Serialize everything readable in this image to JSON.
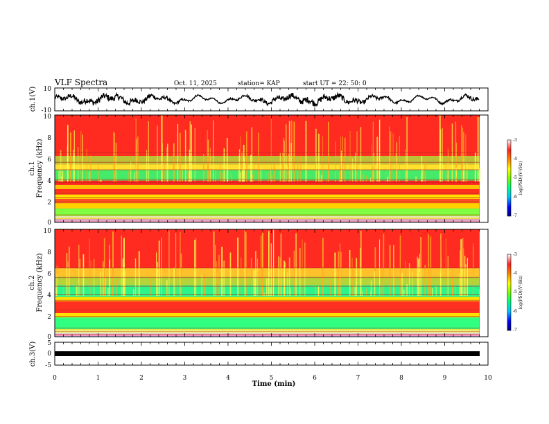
{
  "header": {
    "title": "VLF Spectra",
    "date": "Oct. 11, 2025",
    "station": "station= KAP",
    "start_ut": "start  UT  =   22: 50: 0"
  },
  "colors": {
    "low": "#000080",
    "mid_low": "#00ff60",
    "mid": "#ffff00",
    "high": "#ff2020",
    "top": "#ffffff"
  },
  "chart_data": [
    {
      "type": "line",
      "name": "ch1-waveform",
      "ylabel": "ch.1(V)",
      "ylim": [
        -10,
        10
      ],
      "y_ticks": [
        "10",
        "-10"
      ],
      "xlim": [
        0,
        10
      ]
    },
    {
      "type": "heatmap",
      "name": "ch1-spectrogram",
      "ylabel": "ch.1\nFrequency (kHz)",
      "ylabel_lines": [
        "ch.1",
        "Frequency (kHz)"
      ],
      "ylim": [
        0,
        10
      ],
      "y_ticks": [
        "0",
        "2",
        "4",
        "6",
        "8",
        "10"
      ],
      "xlim": [
        0,
        10
      ],
      "data_end_min": 9.8,
      "colorbar": {
        "range": [
          -7,
          -3
        ],
        "ticks": [
          "-3",
          "-4",
          "-5",
          "-6",
          "-7"
        ],
        "label": "log(PSD)(V²/Hz)"
      }
    },
    {
      "type": "heatmap",
      "name": "ch2-spectrogram",
      "ylabel": "ch.2\nFrequency (kHz)",
      "ylabel_lines": [
        "ch.2",
        "Frequency (kHz)"
      ],
      "ylim": [
        0,
        10
      ],
      "y_ticks": [
        "0",
        "2",
        "4",
        "6",
        "8",
        "10"
      ],
      "xlim": [
        0,
        10
      ],
      "data_end_min": 9.8,
      "colorbar": {
        "range": [
          -7,
          -3
        ],
        "ticks": [
          "-3",
          "-4",
          "-5",
          "-6",
          "-7"
        ],
        "label": "log(PSD)(V²/Hz)"
      }
    },
    {
      "type": "line",
      "name": "ch3-waveform",
      "ylabel": "ch.3(V)",
      "ylim": [
        -5,
        5
      ],
      "y_ticks": [
        "5",
        "0",
        "-5"
      ],
      "xlim": [
        0,
        10
      ],
      "xlabel": "Time (min)",
      "x_ticks": [
        "0",
        "1",
        "2",
        "3",
        "4",
        "5",
        "6",
        "7",
        "8",
        "9",
        "10"
      ]
    }
  ]
}
